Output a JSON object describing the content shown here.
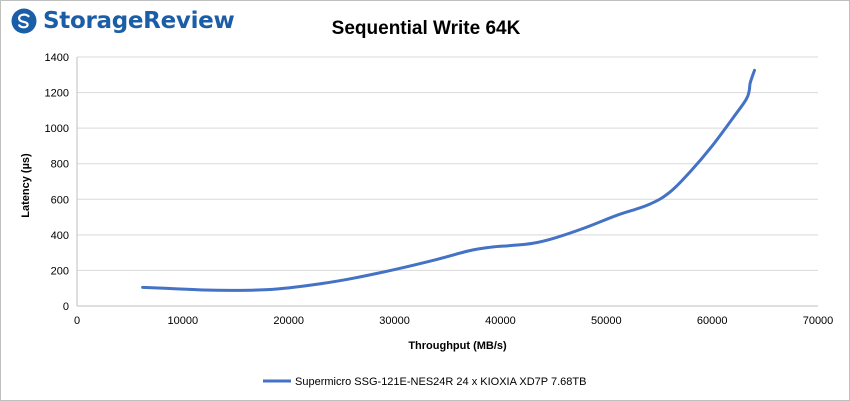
{
  "brand": {
    "name": "StorageReview",
    "color": "#1b5ea8",
    "icon": "storagereview-logo-icon"
  },
  "chart_data": {
    "type": "line",
    "title": "Sequential Write 64K",
    "xlabel": "Throughput (MB/s)",
    "ylabel": "Latency (µs)",
    "xlim": [
      0,
      70000
    ],
    "ylim": [
      0,
      1400
    ],
    "xticks": [
      0,
      10000,
      20000,
      30000,
      40000,
      50000,
      60000,
      70000
    ],
    "yticks": [
      0,
      200,
      400,
      600,
      800,
      1000,
      1200,
      1400
    ],
    "grid": true,
    "legend_position": "bottom",
    "series": [
      {
        "name": "Supermicro SSG-121E-NES24R 24 x KIOXIA XD7P 7.68TB",
        "color": "#4472c4",
        "x": [
          6200,
          9000,
          12000,
          15000,
          18000,
          20000,
          23000,
          26000,
          30000,
          34000,
          37000,
          39000,
          41000,
          43000,
          45000,
          48000,
          51000,
          54000,
          56000,
          58000,
          60000,
          62000,
          63200,
          63500,
          63600,
          64000
        ],
        "y": [
          105,
          98,
          90,
          88,
          92,
          102,
          125,
          155,
          205,
          262,
          310,
          330,
          340,
          352,
          380,
          440,
          510,
          570,
          640,
          760,
          900,
          1060,
          1160,
          1210,
          1255,
          1325
        ]
      }
    ]
  }
}
